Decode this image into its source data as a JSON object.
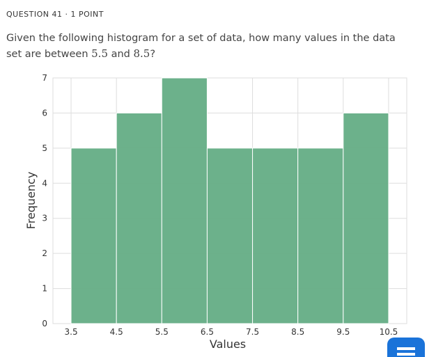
{
  "header": {
    "label": "QUESTION 41 · 1 POINT"
  },
  "question": {
    "parts": [
      "Given the following histogram for a set of data, how many values in the data set are between ",
      "5.5",
      " and ",
      "8.5",
      "?"
    ]
  },
  "chart_data": {
    "type": "histogram",
    "x_label": "Values",
    "y_label": "Frequency",
    "bins": [
      3.5,
      4.5,
      5.5,
      6.5,
      7.5,
      8.5,
      9.5,
      10.5
    ],
    "values": [
      5,
      6,
      7,
      5,
      5,
      5,
      6
    ],
    "color": "#67ae87",
    "xlim": [
      3.1,
      10.9
    ],
    "xticks": [
      3.5,
      4.5,
      5.5,
      6.5,
      7.5,
      8.5,
      9.5,
      10.5
    ],
    "ylim": [
      0,
      7
    ],
    "yticks": [
      0,
      1,
      2,
      3,
      4,
      5,
      6,
      7
    ],
    "grid": true
  }
}
